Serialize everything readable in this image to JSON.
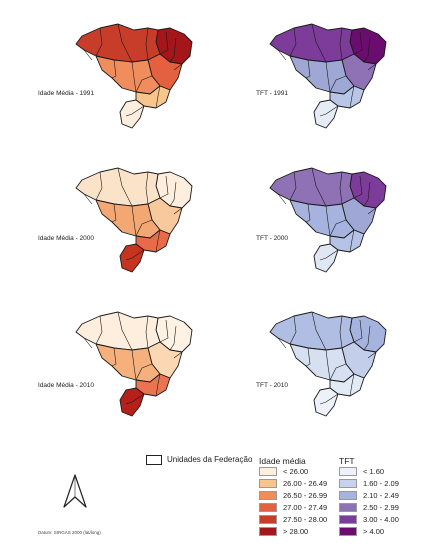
{
  "panels": [
    {
      "label": "Idade Média - 1991",
      "variable": "idade",
      "level_colors": [
        "#a4161a",
        "#c83c2a",
        "#e4603f",
        "#f08d5c",
        "#f8c58d",
        "#fdeedd"
      ]
    },
    {
      "label": "TFT - 1991",
      "variable": "tft",
      "level_colors": [
        "#6a0d6e",
        "#7d3b9a",
        "#8f72b6",
        "#9fa8d4",
        "#b9c6e6",
        "#e6ecf6"
      ]
    },
    {
      "label": "Idade Média - 2000",
      "variable": "idade",
      "level_colors": [
        "#fdeedd",
        "#fbe3c9",
        "#f7c99c",
        "#f3a873",
        "#e96a4a",
        "#c6331f"
      ]
    },
    {
      "label": "TFT - 2000",
      "variable": "tft",
      "level_colors": [
        "#7d3b9a",
        "#8f72b6",
        "#9fa8d4",
        "#a6b3de",
        "#b6c3e6",
        "#dfe7f4"
      ]
    },
    {
      "label": "Idade Média - 2010",
      "variable": "idade",
      "level_colors": [
        "#fef2e5",
        "#fdeedd",
        "#fbd8b3",
        "#f5b07b",
        "#ea7352",
        "#b7201a"
      ]
    },
    {
      "label": "TFT - 2010",
      "variable": "tft",
      "level_colors": [
        "#a6b3de",
        "#b1bee3",
        "#c3cfea",
        "#d6e0f1",
        "#e2eaf6",
        "#edf2fa"
      ]
    }
  ],
  "legend": {
    "uf_label": "Unidades da Federação",
    "idade_title": "Idade média",
    "idade_classes": [
      {
        "label": "< 26.00",
        "color": "#fdeedd"
      },
      {
        "label": "26.00 - 26.49",
        "color": "#f8c58d"
      },
      {
        "label": "26.50 - 26.99",
        "color": "#f08d5c"
      },
      {
        "label": "27.00 - 27.49",
        "color": "#e4603f"
      },
      {
        "label": "27.50 - 28.00",
        "color": "#c83c2a"
      },
      {
        "label": "> 28.00",
        "color": "#a4161a"
      }
    ],
    "tft_title": "TFT",
    "tft_classes": [
      {
        "label": "< 1.60",
        "color": "#edf2fa"
      },
      {
        "label": "1.60 - 2.09",
        "color": "#c7d3ec"
      },
      {
        "label": "2.10 - 2.49",
        "color": "#a6b3de"
      },
      {
        "label": "2.50 - 2.99",
        "color": "#8f72b6"
      },
      {
        "label": "3.00 - 4.00",
        "color": "#7d3b9a"
      },
      {
        "label": "> 4.00",
        "color": "#6a0d6e"
      }
    ]
  },
  "datum": "Datum: SIRGAS 2000 (lat/long)",
  "north_arrow_icon": "north-arrow-icon"
}
